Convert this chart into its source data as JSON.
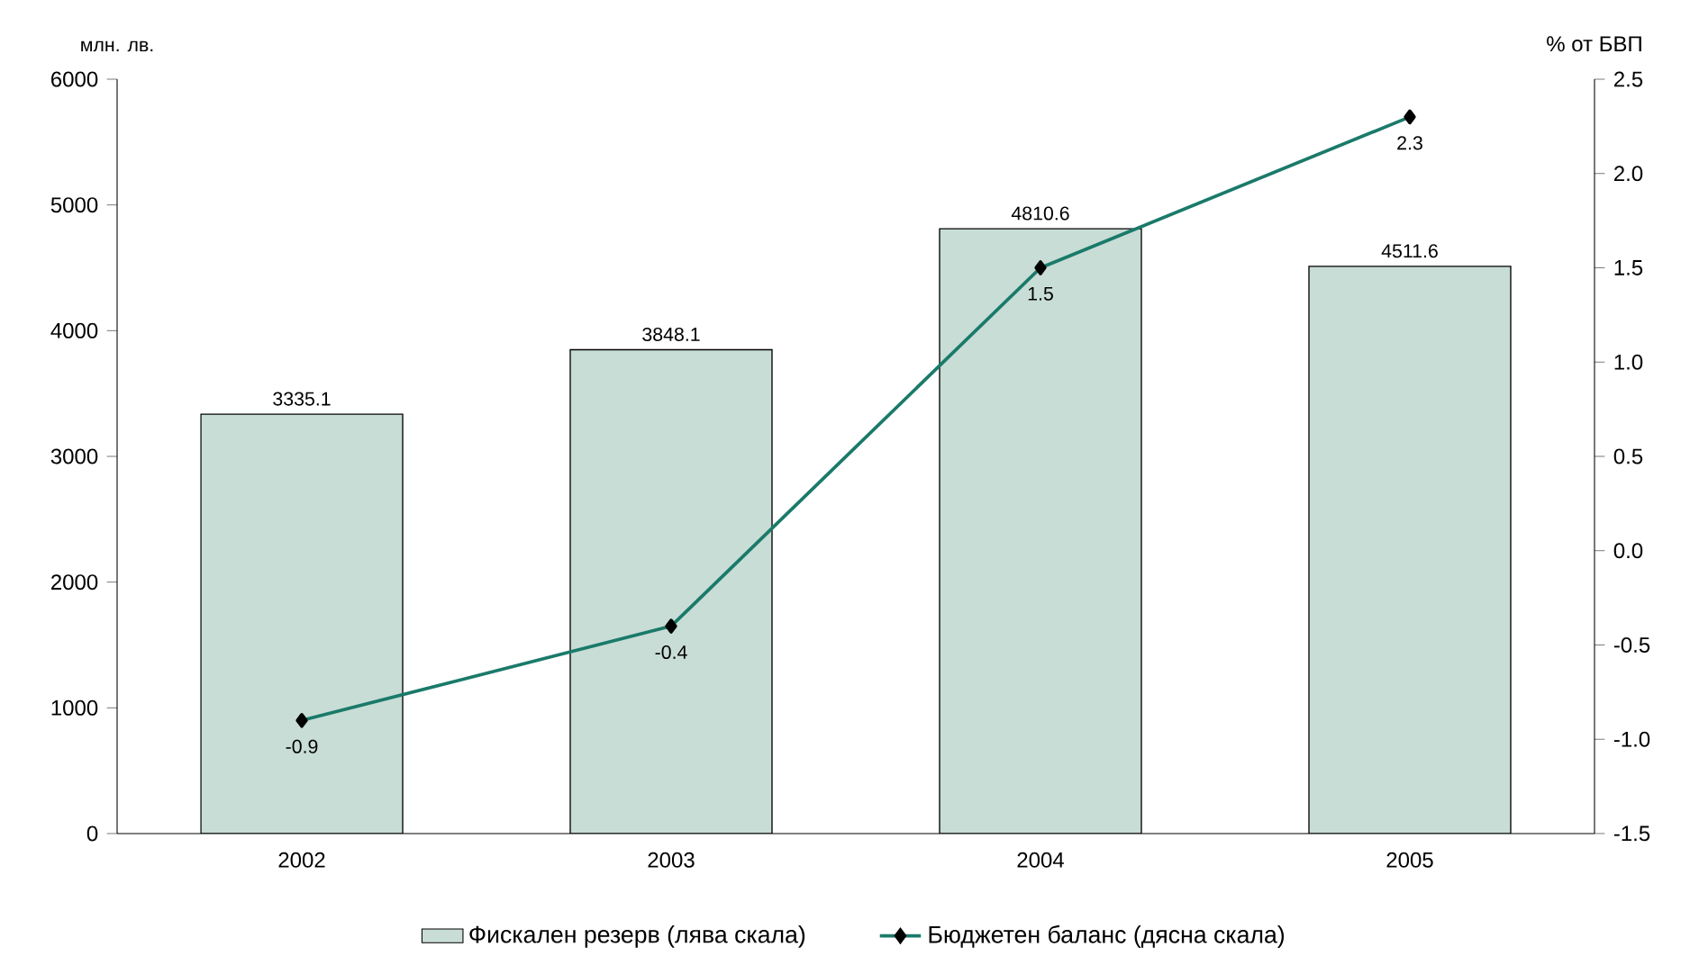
{
  "chart_data": {
    "type": "bar",
    "categories": [
      "2002",
      "2003",
      "2004",
      "2005"
    ],
    "series": [
      {
        "name": "Фискален резерв (лява скала)",
        "color": "#c8ddd5",
        "values": [
          3335.1,
          3848.1,
          4810.6,
          4511.6
        ]
      },
      {
        "name": "Бюджетен баланс (дясна скала)",
        "type": "line",
        "axis": "y2",
        "color": "#1a7a6a",
        "values": [
          -0.9,
          -0.4,
          1.5,
          2.3
        ]
      }
    ],
    "ylabel": "млн. лв.",
    "y2label": "% от БВП",
    "ylim": [
      0,
      6000
    ],
    "yticks": [
      0,
      1000,
      2000,
      3000,
      4000,
      5000,
      6000
    ],
    "y2lim": [
      -1.5,
      2.5
    ],
    "y2ticks": [
      -1.5,
      {
        "value": -1,
        "label": "-1.0"
      },
      -0.5,
      {
        "value": 0,
        "label": "0.0"
      },
      0.5,
      {
        "value": 1,
        "label": "1.0"
      },
      1.5,
      {
        "value": 2,
        "label": "2.0"
      },
      2.5
    ],
    "data_labels": true,
    "marker": "diamond",
    "legend": "bottom"
  }
}
